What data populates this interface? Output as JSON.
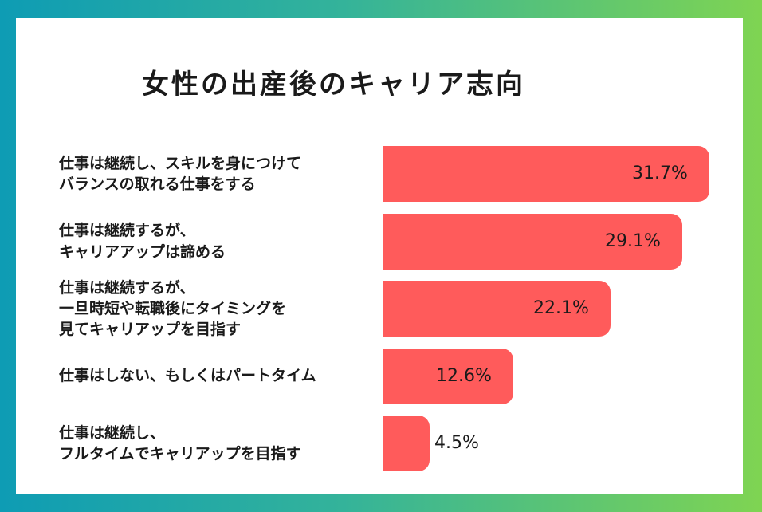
{
  "colors": {
    "bar": "#ff5b5b",
    "text": "#1a1a1a",
    "background_start": "#0e9cb4",
    "background_end": "#7fd452"
  },
  "chart_data": {
    "type": "bar",
    "orientation": "horizontal",
    "title": "女性の出産後のキャリア志向",
    "unit": "%",
    "categories": [
      "仕事は継続し、スキルを身につけて\nバランスの取れる仕事をする",
      "仕事は継続するが、\nキャリアアップは諦める",
      "仕事は継続するが、\n一旦時短や転職後にタイミングを\n見てキャリアップを目指す",
      "仕事はしない、もしくはパートタイム",
      "仕事は継続し、\nフルタイムでキャリアップを目指す"
    ],
    "values": [
      31.7,
      29.1,
      22.1,
      12.6,
      4.5
    ],
    "value_labels": [
      "31.7%",
      "29.1%",
      "22.1%",
      "12.6%",
      "4.5%"
    ],
    "xlim": [
      0,
      31.7
    ]
  }
}
